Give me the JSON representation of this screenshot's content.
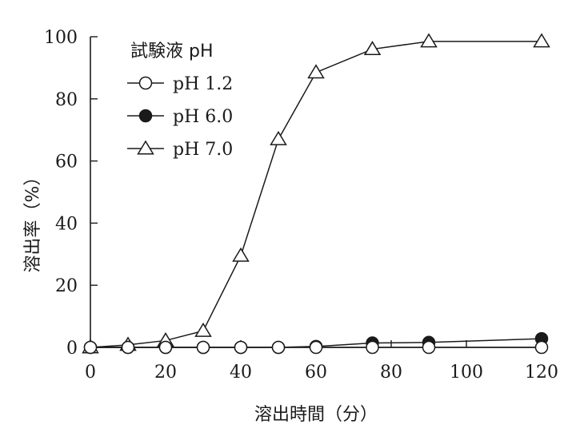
{
  "chart_data": {
    "type": "line",
    "title": "",
    "xlabel": "溶出時間（分）",
    "ylabel": "溶出率（%）",
    "xlim": [
      0,
      120
    ],
    "ylim": [
      0,
      100
    ],
    "xticks": [
      0,
      20,
      40,
      60,
      80,
      100,
      120
    ],
    "yticks": [
      0,
      20,
      40,
      60,
      80,
      100
    ],
    "grid": false,
    "legend": {
      "title": "試験液 pH",
      "placement": "top-left"
    },
    "series": [
      {
        "name": "pH 1.2",
        "marker": "circle-open",
        "x": [
          0,
          10,
          20,
          30,
          40,
          50,
          60,
          75,
          90,
          120
        ],
        "y": [
          0,
          0,
          0,
          0,
          0,
          0,
          0,
          0,
          0,
          0
        ]
      },
      {
        "name": "pH 6.0",
        "marker": "circle-filled",
        "x": [
          0,
          10,
          20,
          30,
          40,
          50,
          60,
          75,
          90,
          120
        ],
        "y": [
          0,
          0,
          0,
          0,
          0,
          0,
          0.3,
          1.4,
          1.6,
          2.8
        ]
      },
      {
        "name": "pH 7.0",
        "marker": "triangle-open",
        "x": [
          0,
          10,
          20,
          30,
          40,
          50,
          60,
          75,
          90,
          120
        ],
        "y": [
          0,
          0.8,
          2.2,
          5.3,
          29.5,
          67,
          88.5,
          96,
          98.5,
          98.5
        ]
      }
    ],
    "colors": {
      "line": "#1a1a1a",
      "fill": "#ffffff"
    }
  }
}
